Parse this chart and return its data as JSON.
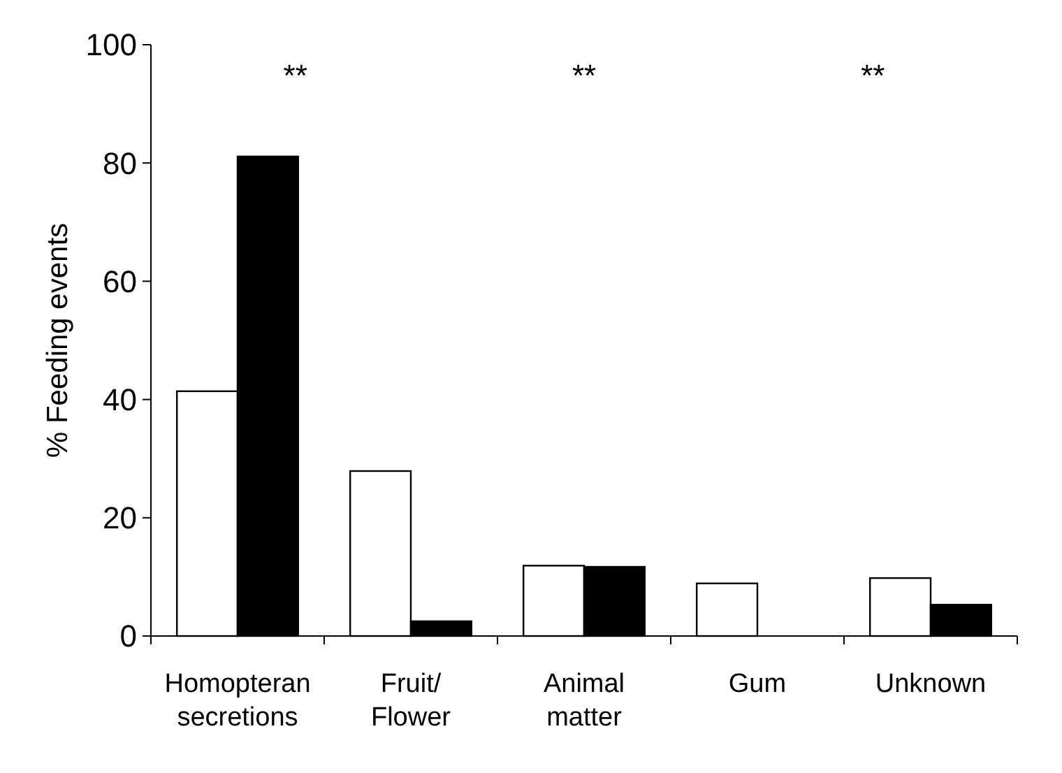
{
  "chart_data": {
    "type": "bar",
    "ylabel": "% Feeding events",
    "categories": [
      "Homopteran secretions",
      "Fruit/ Flower",
      "Animal matter",
      "Gum",
      "Unknown"
    ],
    "series": [
      {
        "color": "#ffffff",
        "values": [
          41.4,
          27.9,
          11.9,
          8.9,
          9.8
        ]
      },
      {
        "color": "#000000",
        "values": [
          81.1,
          2.5,
          11.7,
          null,
          5.3
        ]
      }
    ],
    "ylim": [
      0,
      100
    ],
    "yticks": [
      0,
      20,
      40,
      60,
      80,
      100
    ],
    "grid": false,
    "annotations": [
      "**",
      "**",
      "**"
    ]
  }
}
